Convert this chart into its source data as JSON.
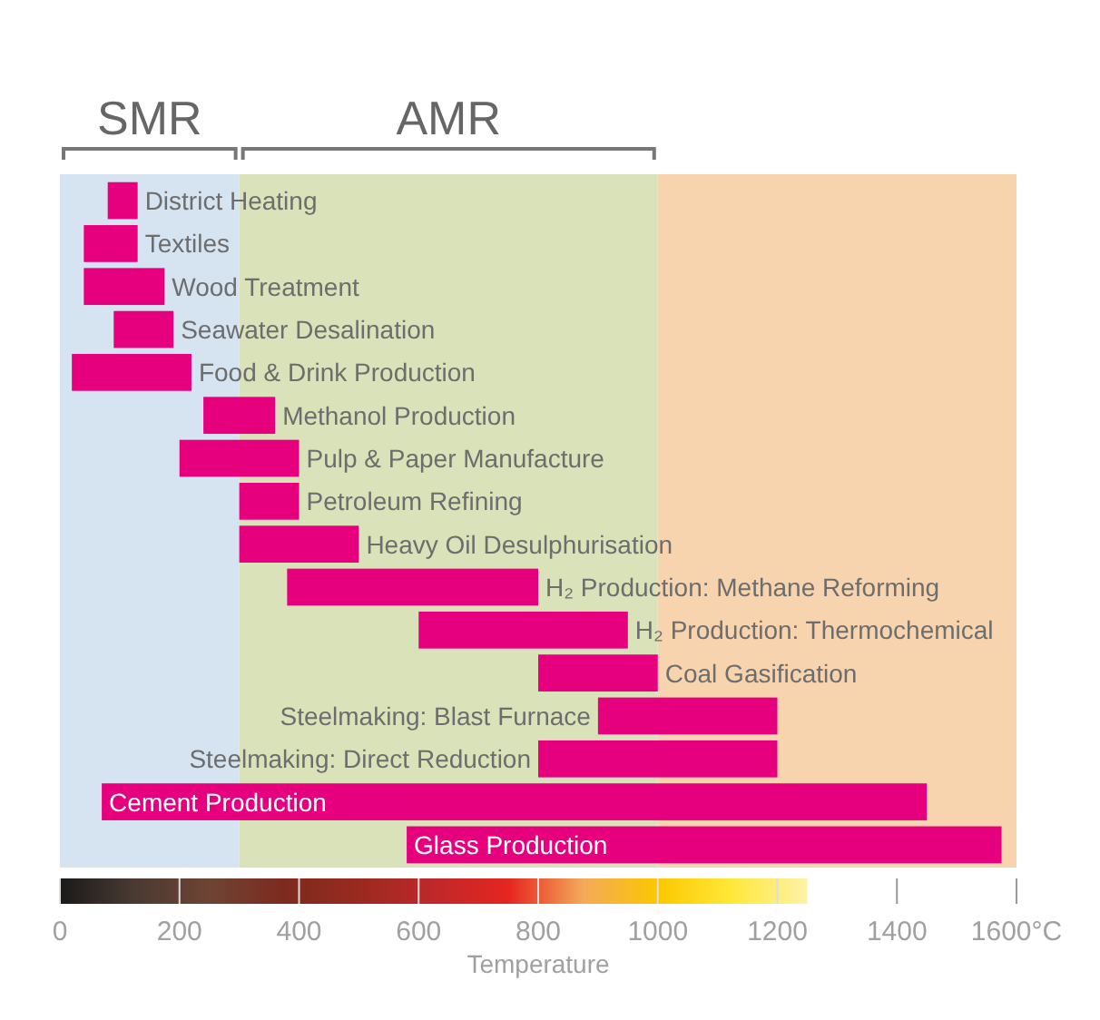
{
  "chart_data": {
    "type": "bar",
    "orientation": "horizontal",
    "xlabel": "Temperature",
    "categories": [
      "District Heating",
      "Textiles",
      "Wood Treatment",
      "Seawater Desalination",
      "Food & Drink Production",
      "Methanol Production",
      "Pulp & Paper Manufacture",
      "Petroleum Refining",
      "Heavy Oil Desulphurisation",
      "H₂ Production: Methane Reforming",
      "H₂ Production: Thermochemical",
      "Coal Gasification",
      "Steelmaking: Blast Furnace",
      "Steelmaking: Direct Reduction",
      "Cement Production",
      "Glass Production"
    ],
    "base": [
      80,
      40,
      40,
      90,
      20,
      240,
      200,
      300,
      300,
      380,
      600,
      800,
      900,
      800,
      70,
      580
    ],
    "values": [
      50,
      90,
      135,
      100,
      200,
      120,
      200,
      100,
      200,
      420,
      350,
      200,
      300,
      400,
      1380,
      995
    ],
    "color": "#e6007e",
    "xlim": [
      0,
      1600
    ],
    "xticks": [
      0,
      200,
      400,
      600,
      800,
      1000,
      1200,
      1400,
      {
        "value": 1600,
        "label": "1600°C"
      }
    ],
    "bands": [
      {
        "axis": "x",
        "from": 0,
        "to": 300,
        "label": "SMR",
        "color": "#d6e3f0"
      },
      {
        "axis": "x",
        "from": 300,
        "to": 1000,
        "label": "AMR",
        "color": "#dae2b9"
      },
      {
        "axis": "x",
        "from": 1000,
        "to": 1600,
        "color": "#f7d4ae"
      }
    ]
  }
}
